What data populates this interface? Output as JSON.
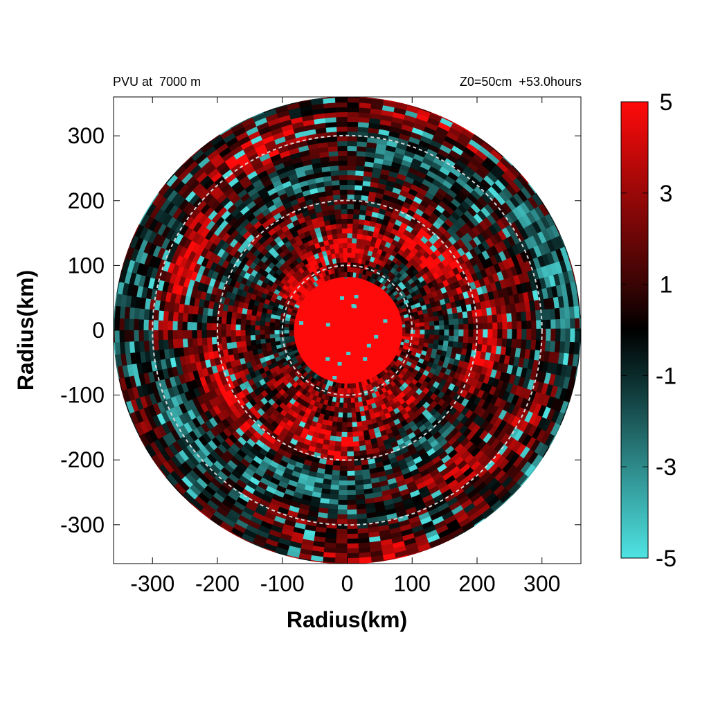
{
  "chart_data": {
    "type": "heatmap",
    "title_left": "PVU at  7000 m",
    "title_right": "Z0=50cm  +53.0hours",
    "xlabel": "Radius(km)",
    "ylabel": "Radius(km)",
    "xlim": [
      -360,
      360
    ],
    "ylim": [
      -360,
      360
    ],
    "x_ticks": [
      -300,
      -200,
      -100,
      0,
      100,
      200,
      300
    ],
    "y_ticks": [
      300,
      200,
      100,
      0,
      -100,
      -200,
      -300
    ],
    "x_tick_labels": [
      "-300",
      "-200",
      "-100",
      "0",
      "100",
      "200",
      "300"
    ],
    "y_tick_labels": [
      "300",
      "200",
      "100",
      "0",
      "-100",
      "-200",
      "-300"
    ],
    "domain_radius_km": 360,
    "reference_circles_km": [
      100,
      200,
      300
    ],
    "core": {
      "center_km": [
        5,
        0
      ],
      "radius_km": 80,
      "value": 5
    },
    "colorbar": {
      "range": [
        -5,
        5
      ],
      "tick_values": [
        5,
        3,
        1,
        -1,
        -3,
        -5
      ],
      "tick_labels": [
        "5",
        "3",
        "1",
        "-1",
        "-3",
        "-5"
      ],
      "color_stops": [
        {
          "value": -5,
          "color": "#4fe3e3"
        },
        {
          "value": -3,
          "color": "#2e8a8a"
        },
        {
          "value": -1,
          "color": "#0b2a2a"
        },
        {
          "value": 0,
          "color": "#000000"
        },
        {
          "value": 1,
          "color": "#3a0404"
        },
        {
          "value": 3,
          "color": "#9a0808"
        },
        {
          "value": 5,
          "color": "#ff0a0a"
        }
      ]
    }
  }
}
